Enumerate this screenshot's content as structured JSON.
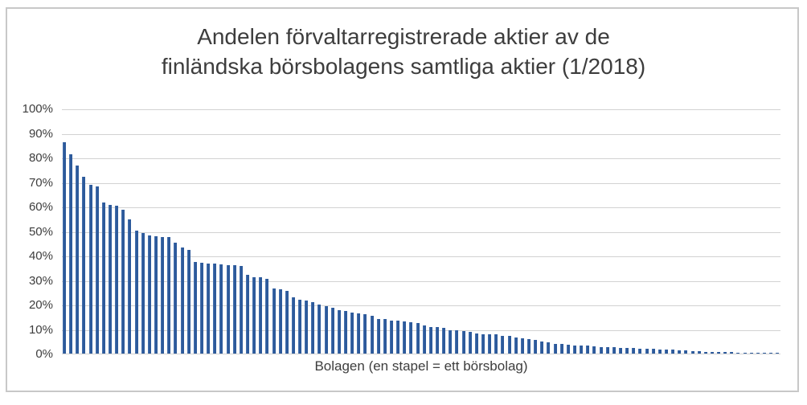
{
  "chart": {
    "title_lines": [
      "Andelen förvaltarregistrerade aktier av de",
      "finländska börsbolagens samtliga aktier (1/2018)"
    ],
    "x_axis_title": "Bolagen (en stapel = ett börsbolag)",
    "colors": {
      "bar": "#2d5a9b",
      "bar_highlight": "#5b84bd",
      "gridline": "#d2d2d2",
      "frame_border": "#c8c8c8",
      "text": "#3d3d3d",
      "background": "#ffffff"
    }
  },
  "chart_data": {
    "type": "bar",
    "title": "Andelen förvaltarregistrerade aktier av de finländska börsbolagens samtliga aktier (1/2018)",
    "xlabel": "Bolagen (en stapel = ett börsbolag)",
    "ylabel": "",
    "ylim": [
      0,
      100
    ],
    "y_tick_labels": [
      "100%",
      "90%",
      "80%",
      "70%",
      "60%",
      "50%",
      "40%",
      "30%",
      "20%",
      "10%",
      "0%"
    ],
    "grid": true,
    "legend": false,
    "bar_count": 110,
    "values_unit": "percent of company shares that are nominee-registered",
    "values": [
      86.5,
      81.5,
      77.0,
      72.5,
      69.0,
      68.3,
      61.7,
      60.7,
      60.4,
      59.0,
      54.8,
      50.2,
      49.2,
      48.4,
      48.1,
      47.8,
      47.6,
      45.5,
      43.4,
      42.6,
      37.5,
      37.2,
      37.0,
      36.8,
      36.6,
      36.3,
      36.1,
      35.7,
      32.2,
      31.4,
      31.2,
      30.7,
      26.6,
      26.3,
      25.5,
      23.1,
      22.2,
      21.7,
      20.9,
      20.0,
      19.4,
      18.9,
      17.8,
      17.6,
      16.7,
      16.5,
      16.2,
      15.6,
      14.2,
      14.0,
      13.6,
      13.4,
      13.1,
      12.9,
      12.6,
      11.5,
      11.0,
      10.7,
      10.4,
      9.6,
      9.4,
      9.1,
      8.8,
      8.3,
      8.0,
      7.8,
      7.8,
      7.4,
      7.1,
      6.6,
      6.1,
      5.8,
      5.5,
      5.1,
      4.7,
      4.1,
      3.8,
      3.6,
      3.4,
      3.4,
      3.2,
      2.9,
      2.7,
      2.6,
      2.5,
      2.4,
      2.3,
      2.2,
      2.1,
      1.9,
      1.9,
      1.7,
      1.6,
      1.5,
      1.4,
      1.2,
      1.0,
      0.9,
      0.8,
      0.7,
      0.5,
      0.5,
      0.5,
      0.4,
      0.4,
      0.4,
      0.4,
      0.3,
      0.3,
      0.3
    ]
  }
}
